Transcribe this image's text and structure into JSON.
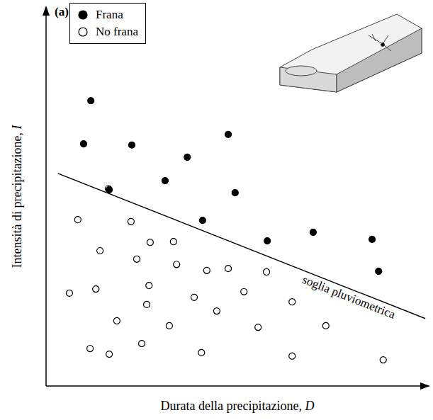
{
  "chart_data": {
    "type": "scatter",
    "panel_label": "(a)",
    "x_label": "Durata della precipitazione, D",
    "y_label": "Intensità di precipitazione, I",
    "xlim": [
      0,
      100
    ],
    "ylim": [
      0,
      100
    ],
    "tick_labels": false,
    "legend": "top-left",
    "series": [
      {
        "name": "Frana",
        "color": "#000000",
        "marker": "circle",
        "x": [
          11.7,
          9.8,
          22.4,
          16.5,
          31.1,
          36.9,
          47.6,
          49.4,
          40.9,
          57.8,
          69.8,
          85.2,
          86.9
        ],
        "y": [
          75.3,
          63.9,
          63.6,
          51.8,
          54.2,
          60.4,
          66.4,
          51.0,
          43.7,
          38.3,
          40.6,
          38.7,
          30.3
        ]
      },
      {
        "name": "No frana",
        "color": "#000000",
        "marker": "open_circle",
        "x": [
          8.3,
          22.2,
          14.1,
          27.2,
          33.3,
          23.7,
          34.1,
          42.0,
          47.6,
          57.6,
          6.1,
          13.0,
          26.9,
          26.3,
          18.5,
          32.2,
          38.7,
          44.6,
          51.7,
          64.3,
          55.4,
          73.1,
          11.5,
          16.5,
          25.0,
          40.6,
          64.3,
          88.1,
          16.3
        ],
        "y": [
          43.9,
          43.4,
          35.7,
          37.9,
          38.1,
          33.5,
          32.1,
          30.5,
          31.0,
          30.1,
          24.5,
          25.6,
          26.5,
          21.5,
          17.2,
          15.9,
          23.4,
          19.8,
          24.9,
          22.2,
          15.5,
          15.9,
          9.9,
          8.4,
          11.2,
          8.8,
          7.9,
          6.9,
          52.1
        ]
      }
    ],
    "threshold": {
      "name": "soglia pluviometrica",
      "color": "#000000",
      "x": [
        3.1,
        99.1
      ],
      "y": [
        56.1,
        17.8
      ]
    }
  }
}
